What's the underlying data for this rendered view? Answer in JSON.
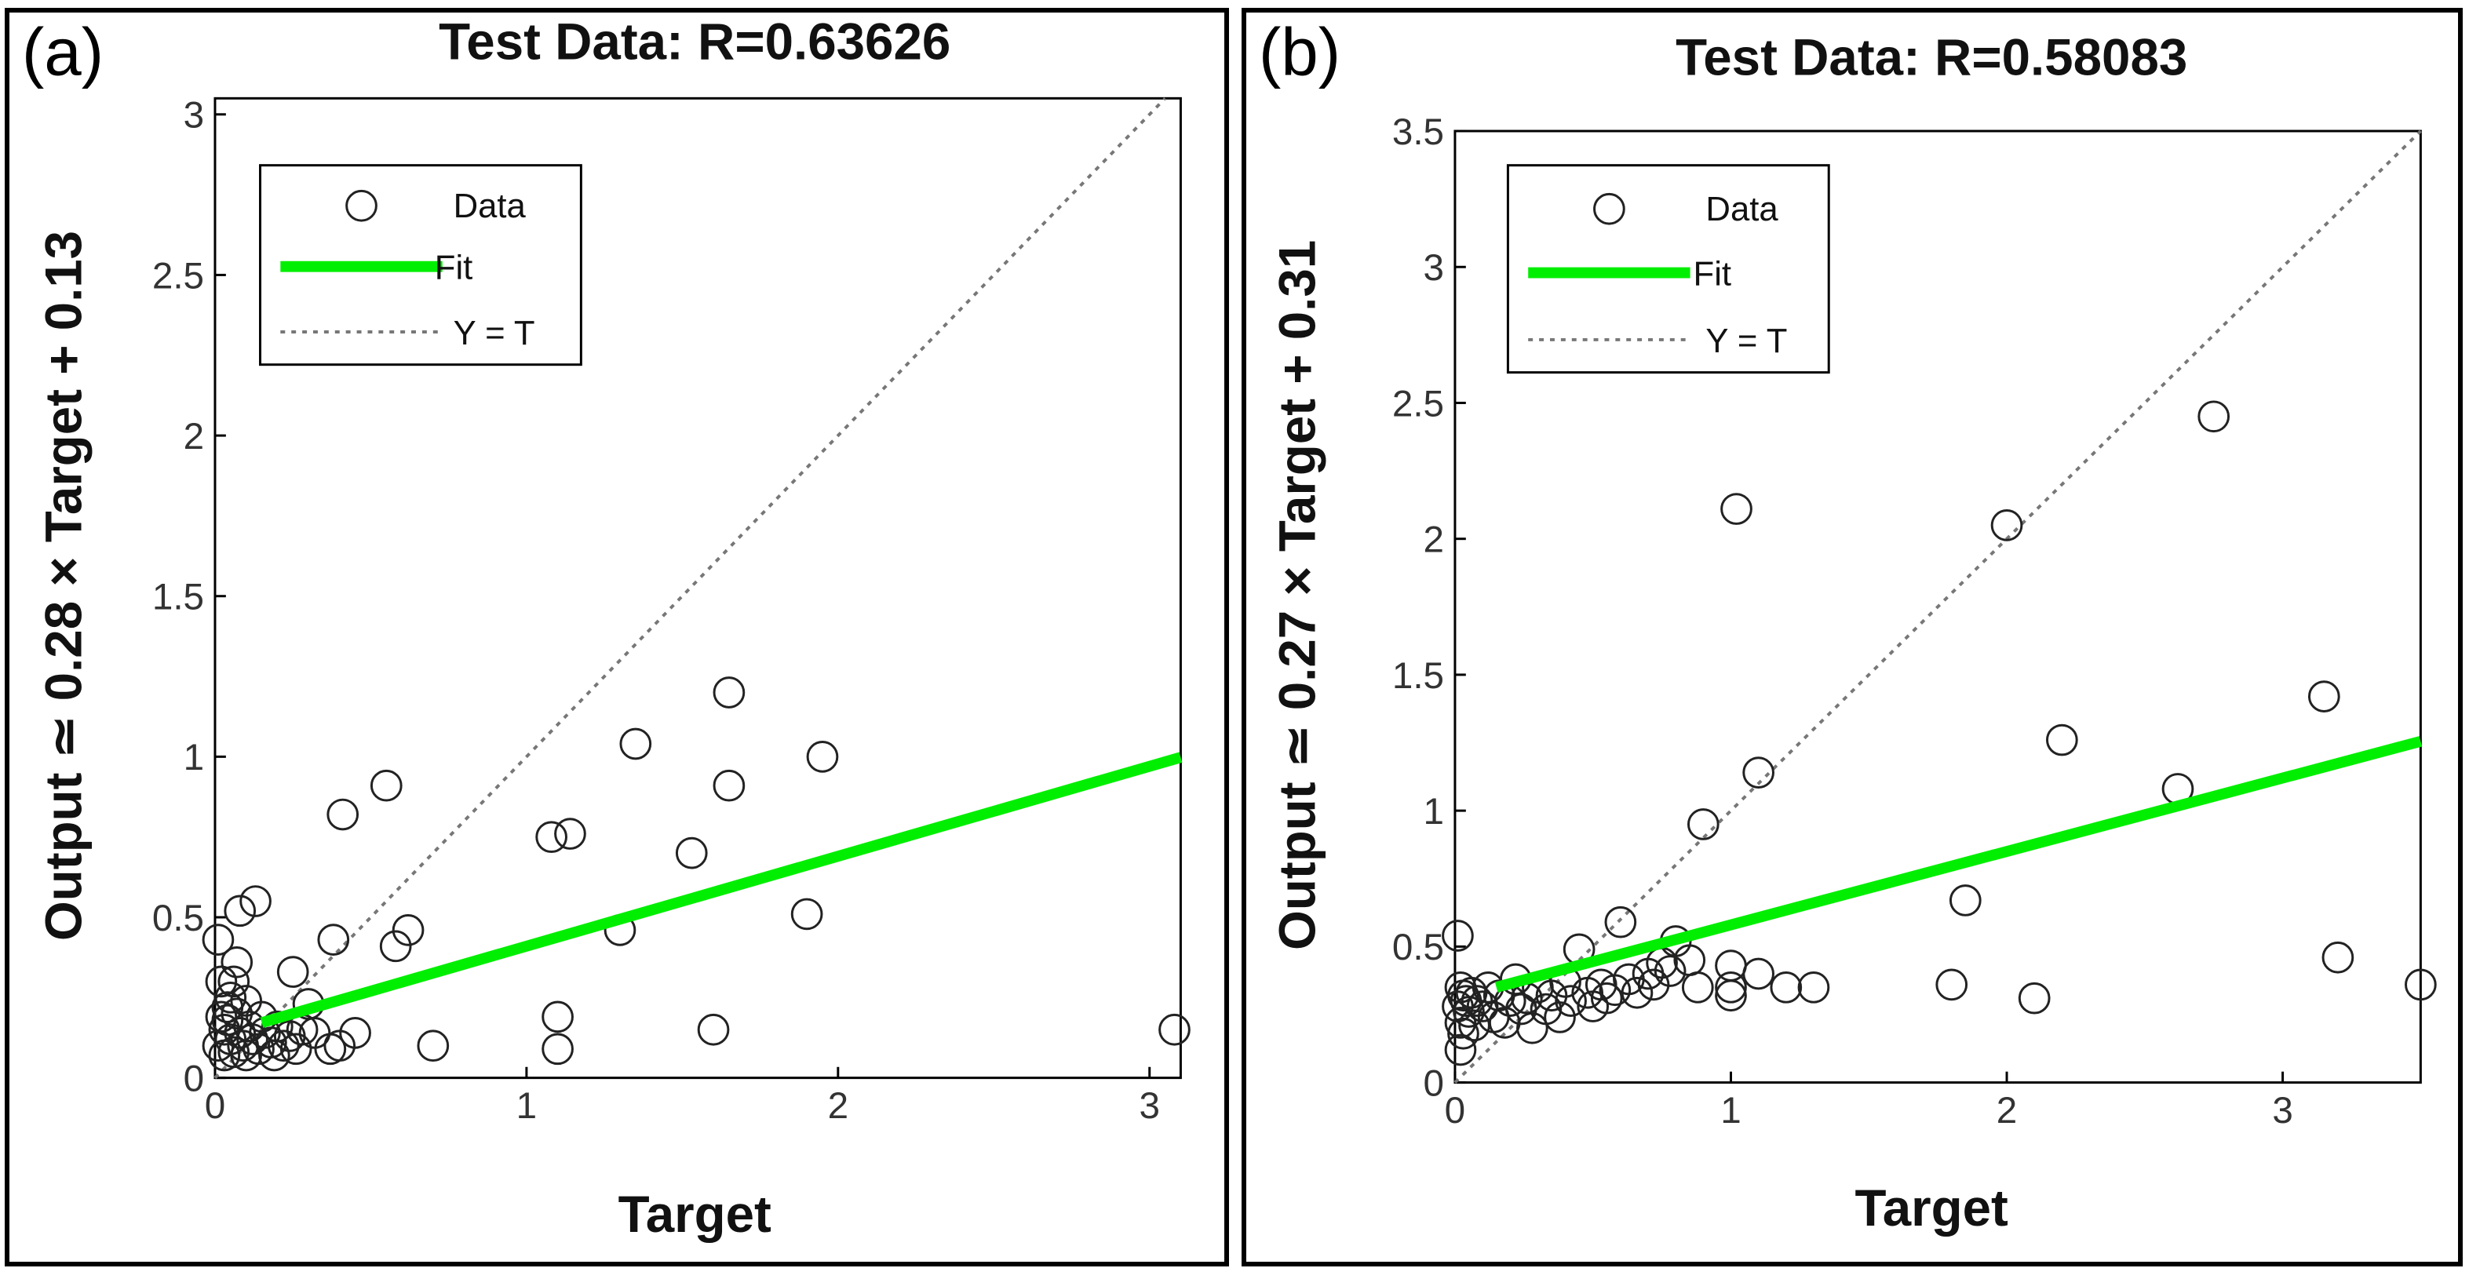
{
  "chart_data": [
    {
      "type": "scatter",
      "panel_label": "(a)",
      "title": "Test Data: R=0.63626",
      "xlabel": "Target",
      "ylabel": "Output ≃ 0.28 × Target + 0.13",
      "xlim": [
        0,
        3.1
      ],
      "ylim": [
        0,
        3.05
      ],
      "xticks": [
        0,
        1,
        2,
        3
      ],
      "yticks": [
        0,
        0.5,
        1,
        1.5,
        2,
        2.5,
        3
      ],
      "fit": {
        "slope": 0.28,
        "intercept": 0.13
      },
      "legend": {
        "data_label": "Data",
        "fit_label": "Fit",
        "ident_label": "Y = T"
      },
      "colors": {
        "fit": "#00ee00",
        "points": "#222222",
        "ident": "#777777"
      },
      "points": [
        [
          0.55,
          0.91
        ],
        [
          0.41,
          0.82
        ],
        [
          0.38,
          0.43
        ],
        [
          0.62,
          0.46
        ],
        [
          0.58,
          0.41
        ],
        [
          0.13,
          0.55
        ],
        [
          0.08,
          0.52
        ],
        [
          0.07,
          0.36
        ],
        [
          0.06,
          0.3
        ],
        [
          0.01,
          0.43
        ],
        [
          0.02,
          0.3
        ],
        [
          0.05,
          0.25
        ],
        [
          0.04,
          0.22
        ],
        [
          0.07,
          0.2
        ],
        [
          0.1,
          0.24
        ],
        [
          0.02,
          0.19
        ],
        [
          0.03,
          0.15
        ],
        [
          0.05,
          0.12
        ],
        [
          0.01,
          0.1
        ],
        [
          0.06,
          0.08
        ],
        [
          0.09,
          0.1
        ],
        [
          0.11,
          0.16
        ],
        [
          0.12,
          0.12
        ],
        [
          0.14,
          0.09
        ],
        [
          0.16,
          0.14
        ],
        [
          0.18,
          0.11
        ],
        [
          0.2,
          0.16
        ],
        [
          0.22,
          0.1
        ],
        [
          0.25,
          0.33
        ],
        [
          0.24,
          0.13
        ],
        [
          0.26,
          0.09
        ],
        [
          0.28,
          0.15
        ],
        [
          0.3,
          0.23
        ],
        [
          0.32,
          0.14
        ],
        [
          0.04,
          0.18
        ],
        [
          0.08,
          0.14
        ],
        [
          0.03,
          0.07
        ],
        [
          0.1,
          0.07
        ],
        [
          0.15,
          0.19
        ],
        [
          0.19,
          0.07
        ],
        [
          0.37,
          0.09
        ],
        [
          0.4,
          0.1
        ],
        [
          0.45,
          0.14
        ],
        [
          0.7,
          0.1
        ],
        [
          1.08,
          0.75
        ],
        [
          1.14,
          0.76
        ],
        [
          1.35,
          1.04
        ],
        [
          1.3,
          0.46
        ],
        [
          1.1,
          0.19
        ],
        [
          1.1,
          0.09
        ],
        [
          1.53,
          0.7
        ],
        [
          1.6,
          0.15
        ],
        [
          1.65,
          1.2
        ],
        [
          1.65,
          0.91
        ],
        [
          1.9,
          0.51
        ],
        [
          1.95,
          1.0
        ],
        [
          3.08,
          0.15
        ]
      ]
    },
    {
      "type": "scatter",
      "panel_label": "(b)",
      "title": "Test Data: R=0.58083",
      "xlabel": "Target",
      "ylabel": "Output ≃ 0.27 × Target + 0.31",
      "xlim": [
        0,
        3.5
      ],
      "ylim": [
        0,
        3.5
      ],
      "xticks": [
        0,
        1,
        2,
        3
      ],
      "yticks": [
        0,
        0.5,
        1,
        1.5,
        2,
        2.5,
        3,
        3.5
      ],
      "fit": {
        "slope": 0.27,
        "intercept": 0.31
      },
      "legend": {
        "data_label": "Data",
        "fit_label": "Fit",
        "ident_label": "Y = T"
      },
      "colors": {
        "fit": "#00ee00",
        "points": "#222222",
        "ident": "#777777"
      },
      "points": [
        [
          0.01,
          0.54
        ],
        [
          0.02,
          0.35
        ],
        [
          0.01,
          0.28
        ],
        [
          0.03,
          0.32
        ],
        [
          0.02,
          0.22
        ],
        [
          0.04,
          0.3
        ],
        [
          0.05,
          0.26
        ],
        [
          0.06,
          0.33
        ],
        [
          0.03,
          0.18
        ],
        [
          0.02,
          0.12
        ],
        [
          0.07,
          0.21
        ],
        [
          0.08,
          0.3
        ],
        [
          0.1,
          0.28
        ],
        [
          0.12,
          0.35
        ],
        [
          0.14,
          0.24
        ],
        [
          0.16,
          0.32
        ],
        [
          0.18,
          0.22
        ],
        [
          0.2,
          0.3
        ],
        [
          0.22,
          0.38
        ],
        [
          0.24,
          0.27
        ],
        [
          0.26,
          0.31
        ],
        [
          0.28,
          0.2
        ],
        [
          0.3,
          0.35
        ],
        [
          0.33,
          0.27
        ],
        [
          0.35,
          0.32
        ],
        [
          0.38,
          0.24
        ],
        [
          0.4,
          0.37
        ],
        [
          0.42,
          0.3
        ],
        [
          0.45,
          0.49
        ],
        [
          0.48,
          0.33
        ],
        [
          0.5,
          0.28
        ],
        [
          0.53,
          0.36
        ],
        [
          0.55,
          0.31
        ],
        [
          0.58,
          0.34
        ],
        [
          0.6,
          0.59
        ],
        [
          0.63,
          0.38
        ],
        [
          0.66,
          0.33
        ],
        [
          0.7,
          0.4
        ],
        [
          0.72,
          0.36
        ],
        [
          0.75,
          0.44
        ],
        [
          0.78,
          0.41
        ],
        [
          0.8,
          0.52
        ],
        [
          0.85,
          0.45
        ],
        [
          0.88,
          0.35
        ],
        [
          0.9,
          0.95
        ],
        [
          1.0,
          0.43
        ],
        [
          1.0,
          0.35
        ],
        [
          1.0,
          0.32
        ],
        [
          1.02,
          2.11
        ],
        [
          1.1,
          1.14
        ],
        [
          1.1,
          0.4
        ],
        [
          1.2,
          0.35
        ],
        [
          1.3,
          0.35
        ],
        [
          1.8,
          0.36
        ],
        [
          1.85,
          0.67
        ],
        [
          2.0,
          2.05
        ],
        [
          2.1,
          0.31
        ],
        [
          2.2,
          1.26
        ],
        [
          2.62,
          1.08
        ],
        [
          2.75,
          2.45
        ],
        [
          3.15,
          1.42
        ],
        [
          3.2,
          0.46
        ],
        [
          3.5,
          0.36
        ]
      ]
    }
  ]
}
